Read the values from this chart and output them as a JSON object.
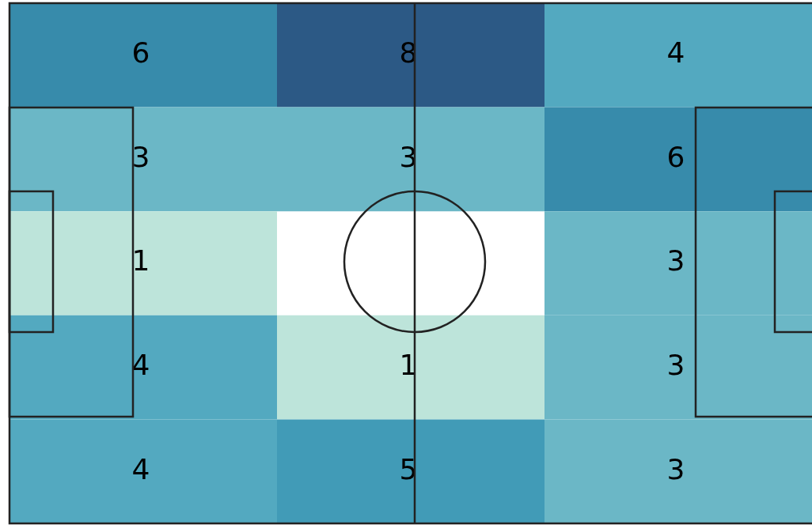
{
  "chart_data": {
    "type": "heatmap",
    "categories": [
      null,
      null,
      null
    ],
    "y_categories": [
      null,
      null,
      null,
      null,
      null
    ],
    "cells": [
      [
        6,
        8,
        4
      ],
      [
        3,
        3,
        6
      ],
      [
        1,
        null,
        3
      ],
      [
        4,
        1,
        3
      ],
      [
        4,
        5,
        3
      ]
    ],
    "data_labels": true,
    "tick_labels": false
  }
}
